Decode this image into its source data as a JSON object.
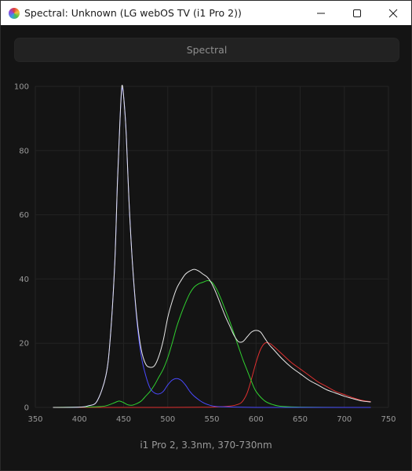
{
  "window": {
    "title": "Spectral: Unknown (LG webOS TV (i1 Pro 2))"
  },
  "icons": {
    "app": "spectral-app-icon",
    "minimize": "minimize-icon",
    "maximize": "maximize-icon",
    "close": "close-icon"
  },
  "mode_button": {
    "label": "Spectral"
  },
  "caption": "i1 Pro 2, 3.3nm, 370-730nm",
  "chart_data": {
    "type": "line",
    "title": "",
    "xlabel": "",
    "ylabel": "",
    "xlim": [
      350,
      750
    ],
    "ylim": [
      0,
      100
    ],
    "xticks": [
      350,
      400,
      450,
      500,
      550,
      600,
      650,
      700,
      750
    ],
    "yticks": [
      0,
      20,
      40,
      60,
      80,
      100
    ],
    "grid": true,
    "legend": "none",
    "series": [
      {
        "color": "#e8e8e8",
        "x": [
          370,
          400,
          410,
          420,
          430,
          435,
          440,
          443,
          446,
          448,
          450,
          453,
          456,
          460,
          465,
          470,
          475,
          480,
          485,
          490,
          495,
          500,
          505,
          510,
          515,
          520,
          525,
          530,
          535,
          540,
          545,
          550,
          555,
          560,
          565,
          570,
          575,
          580,
          585,
          590,
          595,
          600,
          605,
          610,
          615,
          620,
          630,
          640,
          650,
          660,
          670,
          680,
          690,
          700,
          710,
          720,
          730
        ],
        "y": [
          0,
          0.1,
          0.5,
          2,
          10,
          22,
          45,
          70,
          90,
          100,
          97,
          85,
          65,
          45,
          28,
          18,
          13.5,
          12.5,
          13,
          16,
          21,
          28,
          33,
          37,
          39.5,
          41.5,
          42.5,
          43,
          42.5,
          41.5,
          40.5,
          38.5,
          35.5,
          32,
          28.5,
          25.5,
          22.5,
          20.5,
          20.5,
          22,
          23.5,
          24,
          23.5,
          21.5,
          19.5,
          18,
          15,
          12.5,
          10.5,
          8.5,
          7,
          5.5,
          4.5,
          3.5,
          2.7,
          2,
          1.7
        ]
      },
      {
        "color": "#4a4aff",
        "x": [
          370,
          400,
          410,
          420,
          430,
          435,
          440,
          443,
          446,
          448,
          450,
          453,
          456,
          460,
          465,
          470,
          475,
          480,
          485,
          490,
          495,
          500,
          505,
          510,
          515,
          520,
          525,
          530,
          540,
          550,
          560,
          580,
          600,
          650,
          700,
          730
        ],
        "y": [
          0,
          0.1,
          0.5,
          2,
          10,
          22,
          45,
          70,
          90,
          99,
          97,
          85,
          65,
          45,
          27,
          16,
          10,
          6,
          4.5,
          4.2,
          5,
          7,
          8.5,
          9,
          8.5,
          7,
          5,
          3.5,
          1.5,
          0.5,
          0.2,
          0.1,
          0,
          0,
          0,
          0
        ]
      },
      {
        "color": "#30d030",
        "x": [
          370,
          400,
          420,
          430,
          440,
          445,
          450,
          455,
          460,
          465,
          470,
          475,
          480,
          485,
          490,
          495,
          500,
          505,
          510,
          515,
          520,
          525,
          530,
          535,
          540,
          545,
          550,
          555,
          560,
          565,
          570,
          575,
          580,
          585,
          590,
          595,
          600,
          610,
          620,
          630,
          650,
          700,
          730
        ],
        "y": [
          0,
          0.1,
          0.2,
          0.5,
          1.5,
          2,
          1.5,
          0.8,
          0.7,
          1.2,
          2,
          3.5,
          5,
          7,
          9.5,
          12,
          15.5,
          20,
          25,
          29,
          32.5,
          35.5,
          37.5,
          38.5,
          39,
          39.5,
          39,
          37,
          34,
          30.5,
          27,
          23,
          19,
          15,
          11.5,
          8,
          5,
          2,
          0.8,
          0.3,
          0.1,
          0,
          0
        ]
      },
      {
        "color": "#e03030",
        "x": [
          370,
          500,
          550,
          570,
          580,
          585,
          590,
          595,
          600,
          605,
          610,
          615,
          620,
          630,
          640,
          650,
          660,
          670,
          680,
          690,
          700,
          710,
          720,
          730
        ],
        "y": [
          0,
          0,
          0.1,
          0.4,
          1,
          2,
          4.5,
          9,
          14,
          18,
          20,
          20,
          19,
          16.5,
          14,
          12,
          10,
          8,
          6.5,
          5,
          4,
          3,
          2.2,
          1.8
        ]
      }
    ]
  }
}
